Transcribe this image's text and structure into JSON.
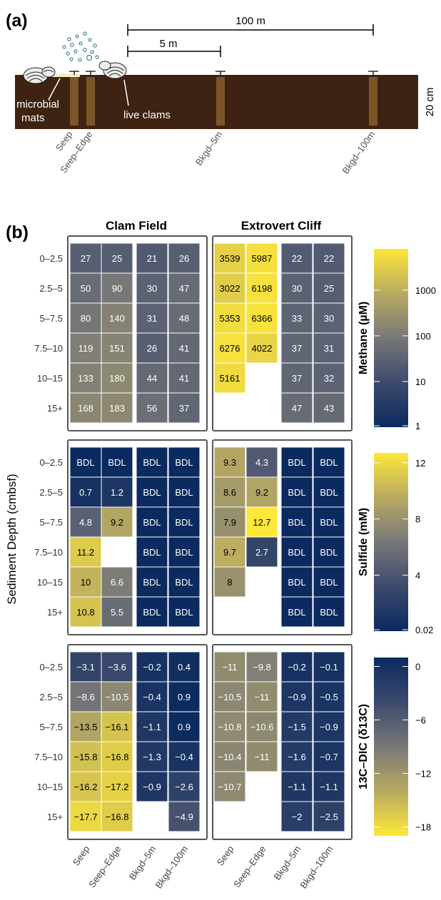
{
  "panel_a": {
    "label": "(a)",
    "scale_100": "100 m",
    "scale_5": "5 m",
    "depth_label": "20 cm",
    "mats_label_1": "microbial",
    "mats_label_2": "mats",
    "clams_label": "live clams",
    "sites": [
      "Seep",
      "Seep–Edge",
      "Bkgd–5m",
      "Bkgd–100m"
    ]
  },
  "panel_b": {
    "label": "(b)",
    "field_titles": [
      "Clam Field",
      "Extrovert Cliff"
    ],
    "y_axis_label": "Sediment Depth (cmbsf)",
    "depths": [
      "0–2.5",
      "2.5–5",
      "5–7.5",
      "7.5–10",
      "10–15",
      "15+"
    ],
    "sites": [
      "Seep",
      "Seep–Edge",
      "Bkgd–5m",
      "Bkgd–100m"
    ]
  },
  "colors": {
    "background": "#ffffff",
    "sediment": "#3e2313",
    "core": "#7d5527",
    "scale_dark": "#0b2a5f",
    "scale_mid": "#787878",
    "scale_bright": "#fee838",
    "empty_cell": "#ffffff"
  },
  "chart_data": [
    {
      "type": "heatmap",
      "title": "",
      "colorbar_label": "Methane (µM)",
      "scale": "log",
      "colorbar_ticks": [
        "1",
        "10",
        "100",
        "1000"
      ],
      "color_range": [
        1,
        8000
      ],
      "reverse_colors": false,
      "y_categories": [
        "0–2.5",
        "2.5–5",
        "5–7.5",
        "7.5–10",
        "10–15",
        "15+"
      ],
      "x_categories": [
        "Seep",
        "Seep–Edge",
        "Bkgd–5m",
        "Bkgd–100m"
      ],
      "fields": [
        {
          "name": "Clam Field",
          "values": [
            [
              "27",
              "25",
              "21",
              "26"
            ],
            [
              "50",
              "90",
              "30",
              "47"
            ],
            [
              "80",
              "140",
              "31",
              "48"
            ],
            [
              "119",
              "151",
              "26",
              "41"
            ],
            [
              "133",
              "180",
              "44",
              "41"
            ],
            [
              "168",
              "183",
              "56",
              "37"
            ]
          ]
        },
        {
          "name": "Extrovert Cliff",
          "values": [
            [
              "3539",
              "5987",
              "22",
              "22"
            ],
            [
              "3022",
              "6198",
              "30",
              "25"
            ],
            [
              "5353",
              "6366",
              "33",
              "30"
            ],
            [
              "6276",
              "4022",
              "37",
              "31"
            ],
            [
              "5161",
              null,
              "37",
              "32"
            ],
            [
              null,
              null,
              "47",
              "43"
            ]
          ]
        }
      ]
    },
    {
      "type": "heatmap",
      "title": "",
      "colorbar_label": "Sulfide (mM)",
      "scale": "linear",
      "colorbar_ticks": [
        "0.02",
        "4",
        "8",
        "12"
      ],
      "color_range": [
        0.02,
        12.7
      ],
      "reverse_colors": false,
      "y_categories": [
        "0–2.5",
        "2.5–5",
        "5–7.5",
        "7.5–10",
        "10–15",
        "15+"
      ],
      "x_categories": [
        "Seep",
        "Seep–Edge",
        "Bkgd–5m",
        "Bkgd–100m"
      ],
      "fields": [
        {
          "name": "Clam Field",
          "values": [
            [
              "BDL",
              "BDL",
              "BDL",
              "BDL"
            ],
            [
              "0.7",
              "1.2",
              "BDL",
              "BDL"
            ],
            [
              "4.8",
              "9.2",
              "BDL",
              "BDL"
            ],
            [
              "11.2",
              null,
              "BDL",
              "BDL"
            ],
            [
              "10",
              "6.6",
              "BDL",
              "BDL"
            ],
            [
              "10.8",
              "5.5",
              "BDL",
              "BDL"
            ]
          ]
        },
        {
          "name": "Extrovert Cliff",
          "values": [
            [
              "9.3",
              "4.3",
              "BDL",
              "BDL"
            ],
            [
              "8.6",
              "9.2",
              "BDL",
              "BDL"
            ],
            [
              "7.9",
              "12.7",
              "BDL",
              "BDL"
            ],
            [
              "9.7",
              "2.7",
              "BDL",
              "BDL"
            ],
            [
              "8",
              null,
              "BDL",
              "BDL"
            ],
            [
              null,
              null,
              "BDL",
              "BDL"
            ]
          ]
        }
      ]
    },
    {
      "type": "heatmap",
      "title": "",
      "colorbar_label": "13C–DIC (δ13C)",
      "scale": "linear",
      "colorbar_ticks": [
        "0",
        "−6",
        "−12",
        "−18"
      ],
      "color_range": [
        -19,
        1
      ],
      "reverse_colors": true,
      "y_categories": [
        "0–2.5",
        "2.5–5",
        "5–7.5",
        "7.5–10",
        "10–15",
        "15+"
      ],
      "x_categories": [
        "Seep",
        "Seep–Edge",
        "Bkgd–5m",
        "Bkgd–100m"
      ],
      "fields": [
        {
          "name": "Clam Field",
          "values": [
            [
              "−3.1",
              "−3.6",
              "−0.2",
              "0.4"
            ],
            [
              "−8.6",
              "−10.5",
              "−0.4",
              "0.9"
            ],
            [
              "−13.5",
              "−16.1",
              "−1.1",
              "0.9"
            ],
            [
              "−15.8",
              "−16.8",
              "−1.3",
              "−0.4"
            ],
            [
              "−16.2",
              "−17.2",
              "−0.9",
              "−2.6"
            ],
            [
              "−17.7",
              "−16.8",
              null,
              "−4.9"
            ]
          ]
        },
        {
          "name": "Extrovert Cliff",
          "values": [
            [
              "−11",
              "−9.8",
              "−0.2",
              "−0.1"
            ],
            [
              "−10.5",
              "−11",
              "−0.9",
              "−0.5"
            ],
            [
              "−10.8",
              "−10.6",
              "−1.5",
              "−0.9"
            ],
            [
              "−10.4",
              "−11",
              "−1.6",
              "−0.7"
            ],
            [
              "−10.7",
              null,
              "−1.1",
              "−1.1"
            ],
            [
              null,
              null,
              "−2",
              "−2.5"
            ]
          ]
        }
      ]
    }
  ]
}
